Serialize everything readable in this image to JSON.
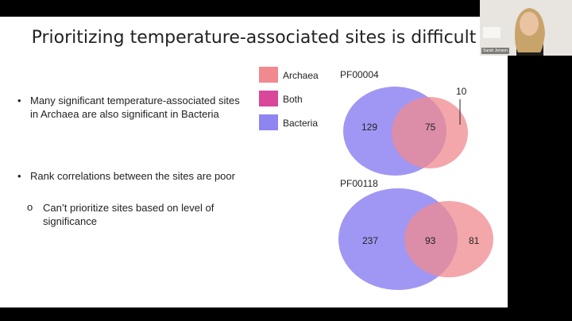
{
  "slide": {
    "title": "Prioritizing temperature-associated sites is difficult",
    "bullets": [
      {
        "marker": "•",
        "text": "Many significant temperature-associated sites in Archaea are also significant in Bacteria"
      },
      {
        "marker": "•",
        "text": "Rank correlations between the sites are poor"
      },
      {
        "marker": "o",
        "text": "Can’t prioritize sites based on level of significance"
      }
    ],
    "legend": [
      {
        "label": "Archaea",
        "color": "#f08a8f"
      },
      {
        "label": "Both",
        "color": "#d9479a"
      },
      {
        "label": "Bacteria",
        "color": "#8f85f2"
      }
    ]
  },
  "venn": [
    {
      "label": "PF00004",
      "bacteria_only": "129",
      "both": "75",
      "archaea_only": "10"
    },
    {
      "label": "PF00118",
      "bacteria_only": "237",
      "both": "93",
      "archaea_only": "81"
    }
  ],
  "webcam": {
    "name": "Sarah Jensen"
  },
  "colors": {
    "bacteria": "#8f85f2",
    "archaea": "#f08a8f",
    "overlap": "#d9479a"
  }
}
